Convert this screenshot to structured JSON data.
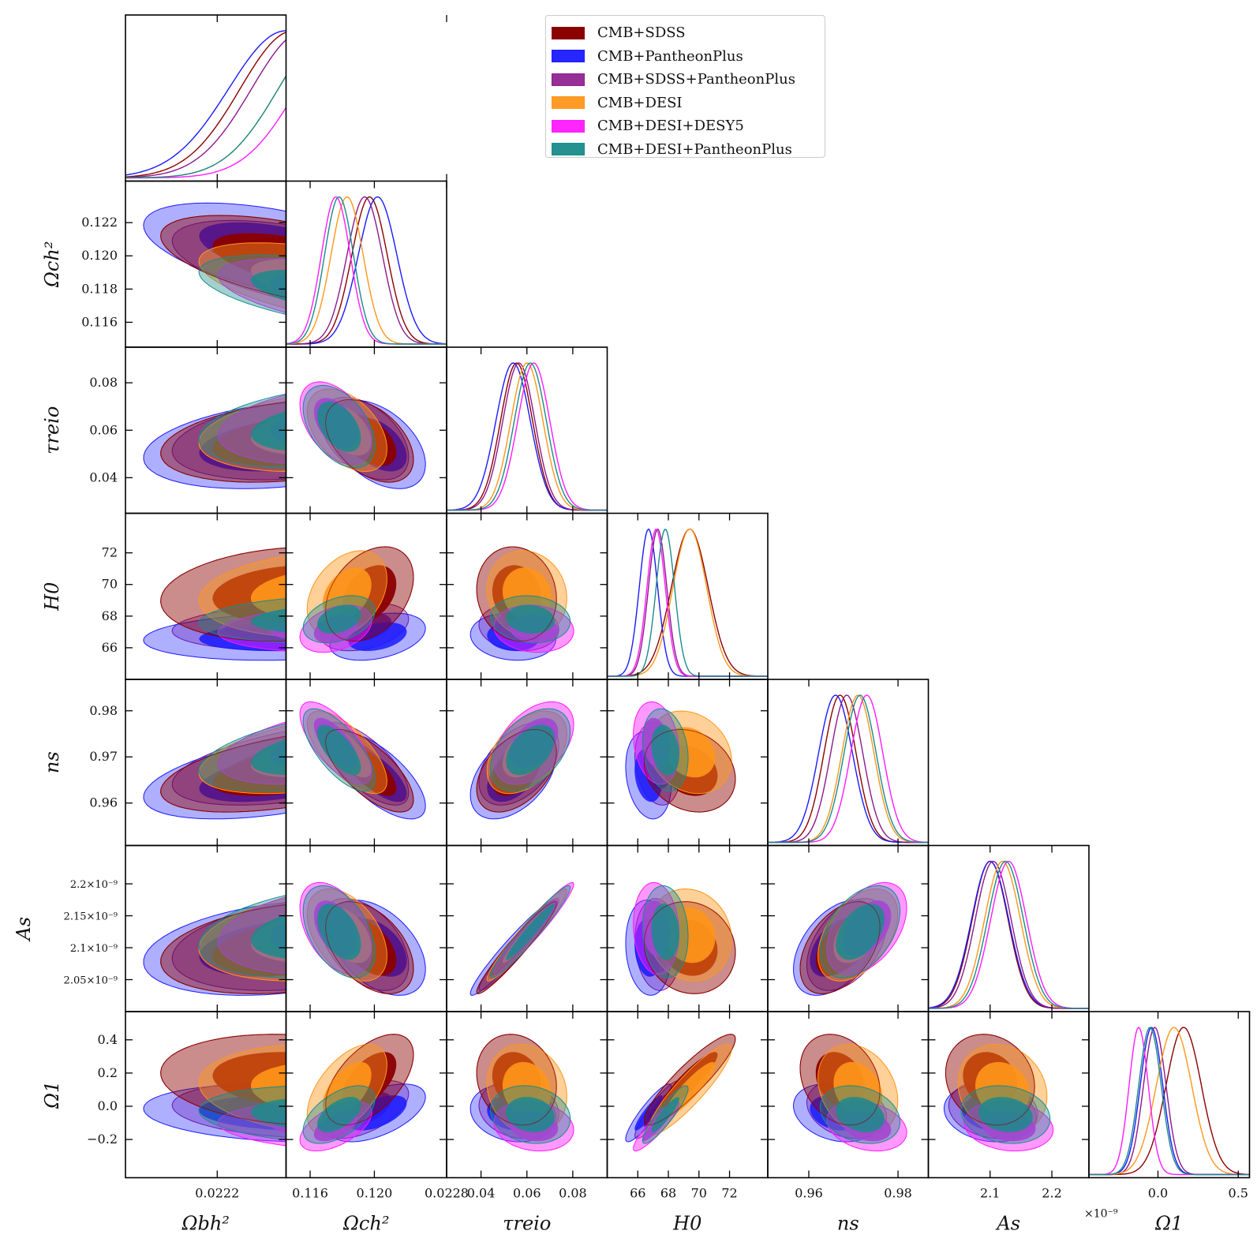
{
  "chart_data": {
    "type": "corner",
    "title": "",
    "legend_position": "top-right",
    "legend": [
      {
        "name": "CMB+SDSS",
        "color": "#8b0000"
      },
      {
        "name": "CMB+PantheonPlus",
        "color": "#1a1aff"
      },
      {
        "name": "CMB+SDSS+PantheonPlus",
        "color": "#8b1a8b"
      },
      {
        "name": "CMB+DESI",
        "color": "#ff961a"
      },
      {
        "name": "CMB+DESI+DESY5",
        "color": "#ff1aff"
      },
      {
        "name": "CMB+DESI+PantheonPlus",
        "color": "#1a8b8b"
      }
    ],
    "parameters": [
      {
        "key": "omega_b",
        "label": "Ωbh²",
        "range": [
          0.02196,
          0.02238
        ],
        "ticks": [
          {
            "v": 0.0222,
            "t": "0.0222"
          },
          {
            "v": 0.0228,
            "t": "0.0228"
          }
        ],
        "row_ticks": []
      },
      {
        "key": "omega_c",
        "label": "Ωch²",
        "range": [
          0.1145,
          0.1245
        ],
        "ticks": [
          {
            "v": 0.116,
            "t": "0.116"
          },
          {
            "v": 0.12,
            "t": "0.120"
          }
        ],
        "row_ticks": [
          {
            "v": 0.116,
            "t": "0.116"
          },
          {
            "v": 0.118,
            "t": "0.118"
          },
          {
            "v": 0.12,
            "t": "0.120"
          },
          {
            "v": 0.122,
            "t": "0.122"
          }
        ]
      },
      {
        "key": "tau_reio",
        "label": "τreio",
        "range": [
          0.025,
          0.095
        ],
        "ticks": [
          {
            "v": 0.04,
            "t": "0.04"
          },
          {
            "v": 0.06,
            "t": "0.06"
          },
          {
            "v": 0.08,
            "t": "0.08"
          }
        ],
        "row_ticks": [
          {
            "v": 0.04,
            "t": "0.04"
          },
          {
            "v": 0.06,
            "t": "0.06"
          },
          {
            "v": 0.08,
            "t": "0.08"
          }
        ]
      },
      {
        "key": "H0",
        "label": "H0",
        "range": [
          64.0,
          74.5
        ],
        "ticks": [
          {
            "v": 66,
            "t": "66"
          },
          {
            "v": 68,
            "t": "68"
          },
          {
            "v": 70,
            "t": "70"
          },
          {
            "v": 72,
            "t": "72"
          }
        ],
        "row_ticks": [
          {
            "v": 66,
            "t": "66"
          },
          {
            "v": 68,
            "t": "68"
          },
          {
            "v": 70,
            "t": "70"
          },
          {
            "v": 72,
            "t": "72"
          }
        ]
      },
      {
        "key": "n_s",
        "label": "ns",
        "range": [
          0.9508,
          0.9868
        ],
        "ticks": [
          {
            "v": 0.96,
            "t": "0.96"
          },
          {
            "v": 0.98,
            "t": "0.98"
          }
        ],
        "row_ticks": [
          {
            "v": 0.96,
            "t": "0.96"
          },
          {
            "v": 0.97,
            "t": "0.97"
          },
          {
            "v": 0.98,
            "t": "0.98"
          }
        ]
      },
      {
        "key": "A_s",
        "label": "As",
        "range": [
          2.0,
          2.26
        ],
        "ticks": [
          {
            "v": 2.1,
            "t": "2.1"
          },
          {
            "v": 2.2,
            "t": "2.2"
          }
        ],
        "row_ticks": [
          {
            "v": 2.05,
            "t": "2.05×10⁻⁹"
          },
          {
            "v": 2.1,
            "t": "2.1×10⁻⁹"
          },
          {
            "v": 2.15,
            "t": "2.15×10⁻⁹"
          },
          {
            "v": 2.2,
            "t": "2.2×10⁻⁹"
          }
        ],
        "exponent_label": "×10⁻⁹"
      },
      {
        "key": "Omega_1",
        "label": "Ω1",
        "range": [
          -0.43,
          0.57
        ],
        "ticks": [
          {
            "v": 0.0,
            "t": "0.0"
          },
          {
            "v": 0.5,
            "t": "0.5"
          }
        ],
        "row_ticks": [
          {
            "v": -0.2,
            "t": "−0.2"
          },
          {
            "v": 0.0,
            "t": "0.0"
          },
          {
            "v": 0.2,
            "t": "0.2"
          },
          {
            "v": 0.4,
            "t": "0.4"
          }
        ]
      }
    ],
    "series": [
      {
        "name": "CMB+SDSS",
        "color": "#8b0000",
        "mean": {
          "omega_b": 0.0224,
          "omega_c": 0.1197,
          "tau_reio": 0.0555,
          "H0": 69.4,
          "n_s": 0.967,
          "A_s": 2.1,
          "Omega_1": 0.16
        },
        "sigma": {
          "omega_b": 0.00014,
          "omega_c": 0.0011,
          "tau_reio": 0.007,
          "H0": 1.2,
          "n_s": 0.0036,
          "A_s": 0.029,
          "Omega_1": 0.11
        }
      },
      {
        "name": "CMB+PantheonPlus",
        "color": "#1a1aff",
        "mean": {
          "omega_b": 0.02238,
          "omega_c": 0.1202,
          "tau_reio": 0.054,
          "H0": 66.7,
          "n_s": 0.966,
          "A_s": 2.1,
          "Omega_1": -0.04
        },
        "sigma": {
          "omega_b": 0.00015,
          "omega_c": 0.0012,
          "tau_reio": 0.0075,
          "H0": 0.6,
          "n_s": 0.0038,
          "A_s": 0.03,
          "Omega_1": 0.07
        }
      },
      {
        "name": "CMB+SDSS+PantheonPlus",
        "color": "#8b1a8b",
        "mean": {
          "omega_b": 0.02243,
          "omega_c": 0.1194,
          "tau_reio": 0.0565,
          "H0": 67.3,
          "n_s": 0.9685,
          "A_s": 2.105,
          "Omega_1": -0.02
        },
        "sigma": {
          "omega_b": 0.00014,
          "omega_c": 0.0011,
          "tau_reio": 0.007,
          "H0": 0.6,
          "n_s": 0.0036,
          "A_s": 0.029,
          "Omega_1": 0.07
        }
      },
      {
        "name": "CMB+DESI",
        "color": "#ff961a",
        "mean": {
          "omega_b": 0.0225,
          "omega_c": 0.1183,
          "tau_reio": 0.06,
          "H0": 69.4,
          "n_s": 0.971,
          "A_s": 2.12,
          "Omega_1": 0.1
        },
        "sigma": {
          "omega_b": 0.00014,
          "omega_c": 0.001,
          "tau_reio": 0.007,
          "H0": 1.1,
          "n_s": 0.0036,
          "A_s": 0.029,
          "Omega_1": 0.11
        }
      },
      {
        "name": "CMB+DESI+DESY5",
        "color": "#ff1aff",
        "mean": {
          "omega_b": 0.02255,
          "omega_c": 0.1176,
          "tau_reio": 0.063,
          "H0": 67.2,
          "n_s": 0.973,
          "A_s": 2.13,
          "Omega_1": -0.12
        },
        "sigma": {
          "omega_b": 0.00014,
          "omega_c": 0.0009,
          "tau_reio": 0.007,
          "H0": 0.6,
          "n_s": 0.0036,
          "A_s": 0.029,
          "Omega_1": 0.06
        }
      },
      {
        "name": "CMB+DESI+PantheonPlus",
        "color": "#1a8b8b",
        "mean": {
          "omega_b": 0.0225,
          "omega_c": 0.1178,
          "tau_reio": 0.0615,
          "H0": 67.8,
          "n_s": 0.9715,
          "A_s": 2.125,
          "Omega_1": -0.05
        },
        "sigma": {
          "omega_b": 0.00014,
          "omega_c": 0.0009,
          "tau_reio": 0.007,
          "H0": 0.6,
          "n_s": 0.0036,
          "A_s": 0.029,
          "Omega_1": 0.07
        }
      }
    ]
  }
}
